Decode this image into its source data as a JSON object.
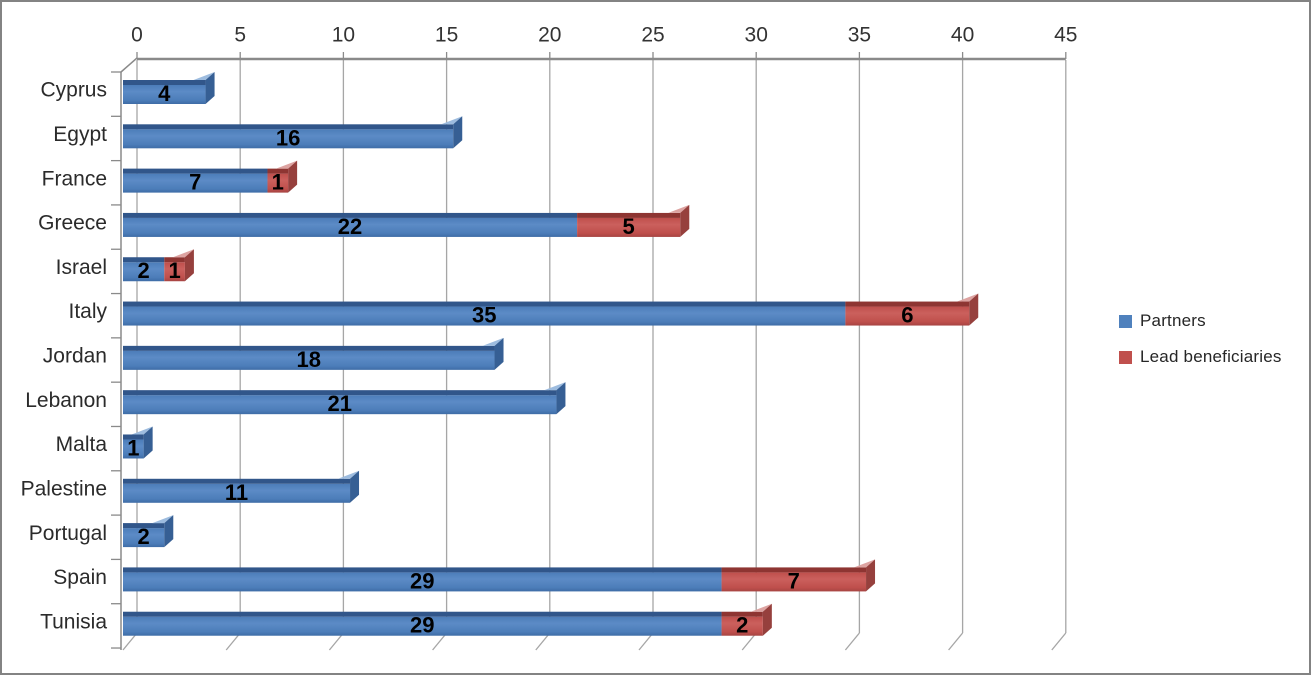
{
  "chart_data": {
    "type": "bar",
    "orientation": "horizontal",
    "stacked": true,
    "style": "3d",
    "title": "",
    "xlabel": "",
    "ylabel": "",
    "categories": [
      "Cyprus",
      "Egypt",
      "France",
      "Greece",
      "Israel",
      "Italy",
      "Jordan",
      "Lebanon",
      "Malta",
      "Palestine",
      "Portugal",
      "Spain",
      "Tunisia"
    ],
    "series": [
      {
        "name": "Partners",
        "color": "#4f81bd",
        "shades": {
          "top": "#31568a",
          "side": "#365f94",
          "highlight": "#9dbcdf",
          "body_light": "#5c8bc6",
          "body": "#4c7db9",
          "body_dark": "#3e6ca6"
        },
        "values": [
          4,
          16,
          7,
          22,
          2,
          35,
          18,
          21,
          1,
          11,
          2,
          29,
          29
        ]
      },
      {
        "name": "Lead beneficiaries",
        "color": "#c0504d",
        "shades": {
          "top": "#8e3532",
          "side": "#96403d",
          "highlight": "#dda3a1",
          "body_light": "#cb605d",
          "body": "#bf4f4c",
          "body_dark": "#a64442"
        },
        "values": [
          0,
          0,
          1,
          5,
          1,
          6,
          0,
          0,
          0,
          0,
          0,
          7,
          2
        ]
      }
    ],
    "x_axis": {
      "min": 0,
      "max": 45,
      "step": 5,
      "ticks": [
        0,
        5,
        10,
        15,
        20,
        25,
        30,
        35,
        40,
        45
      ],
      "position": "top"
    },
    "xlim": [
      0,
      45
    ],
    "grid": true,
    "data_labels": "inside-segment",
    "legend_position": "right",
    "colors": {
      "grid": "#a6a6a6",
      "axis": "#8a8a8a",
      "tick_text": "#333333",
      "category_text": "#2b2b2b",
      "value_label": "#000000",
      "background": "#ffffff",
      "frame_border": "#838383"
    }
  }
}
